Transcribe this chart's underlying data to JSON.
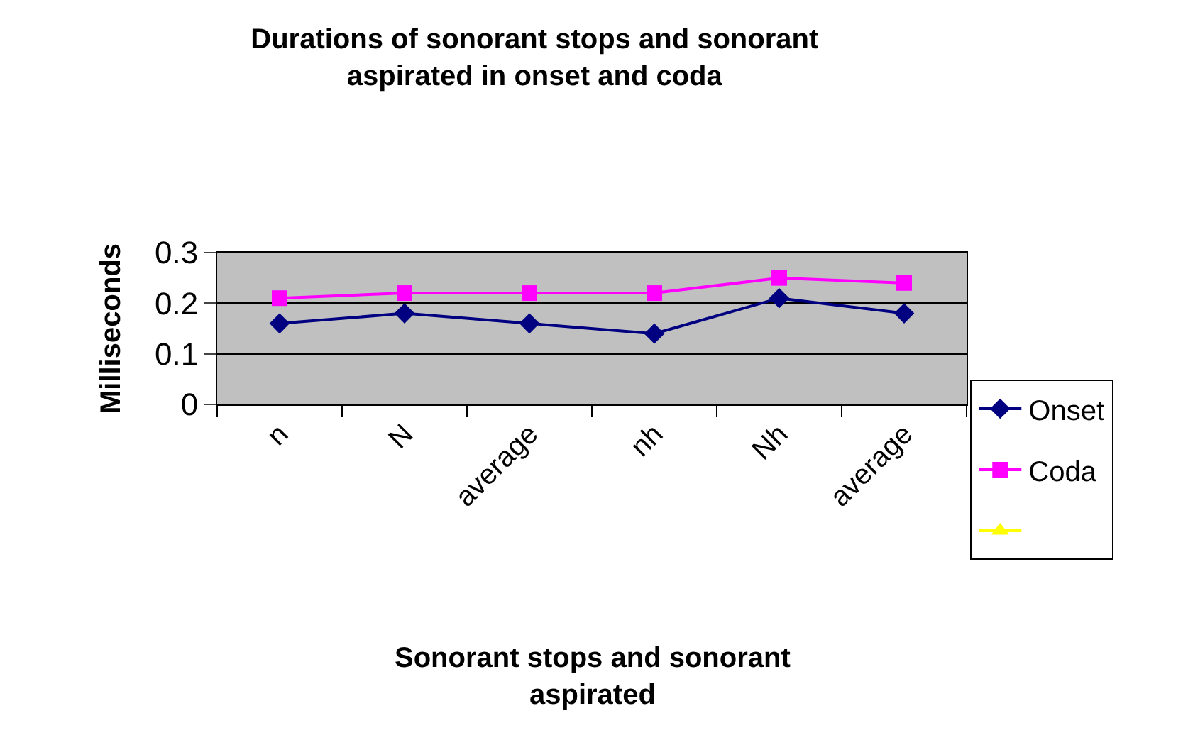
{
  "chart_data": {
    "type": "line",
    "title": "Durations of sonorant stops and sonorant aspirated in onset and coda",
    "xlabel": "Sonorant stops and sonorant aspirated",
    "ylabel": "Milliseconds",
    "categories": [
      "n",
      "N",
      "average",
      "nh",
      "Nh",
      "average"
    ],
    "series": [
      {
        "name": "Onset",
        "color": "#000080",
        "marker": "diamond",
        "values": [
          0.16,
          0.18,
          0.16,
          0.14,
          0.21,
          0.18
        ]
      },
      {
        "name": "Coda",
        "color": "#ff00ff",
        "marker": "square",
        "values": [
          0.21,
          0.22,
          0.22,
          0.22,
          0.25,
          0.24
        ]
      },
      {
        "color": "#ffff00",
        "marker": "triangle",
        "values": [
          null,
          null,
          null,
          null,
          null,
          null
        ]
      }
    ],
    "ylim": [
      0,
      0.3
    ],
    "yticks": [
      0,
      0.1,
      0.2,
      0.3
    ],
    "grid": "y",
    "legend": "right",
    "line_style": "solid"
  }
}
